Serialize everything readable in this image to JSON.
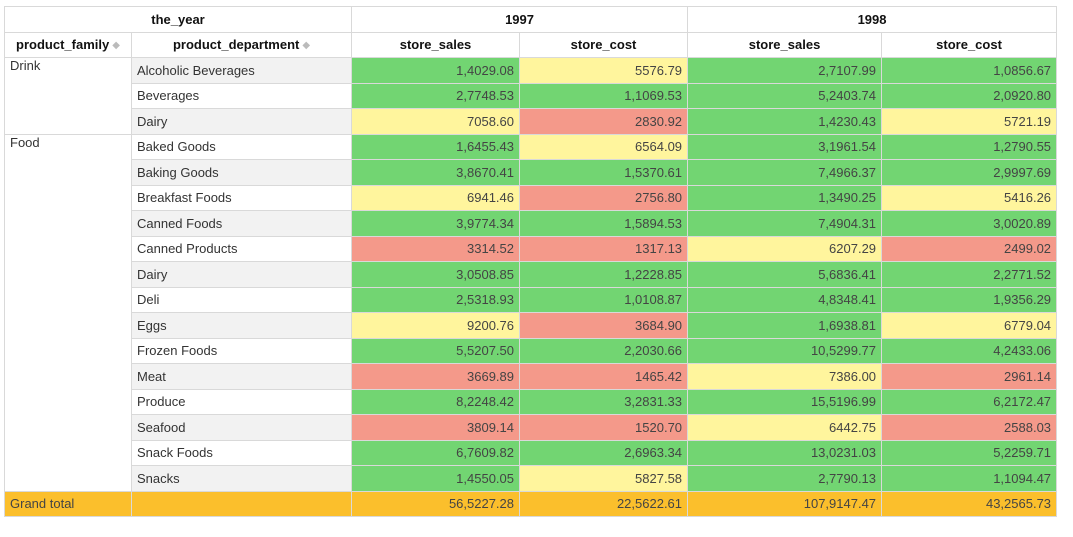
{
  "headers": {
    "year_axis": "the_year",
    "years": [
      "1997",
      "1998"
    ],
    "row_fields": [
      "product_family",
      "product_department"
    ],
    "measures": [
      "store_sales",
      "store_cost"
    ]
  },
  "families": [
    {
      "name": "Drink",
      "rows": [
        {
          "dept": "Alcoholic Beverages",
          "v": [
            "1,4029.08",
            "5576.79",
            "2,7107.99",
            "1,0856.67"
          ],
          "c": [
            "green",
            "yellow",
            "green",
            "green"
          ]
        },
        {
          "dept": "Beverages",
          "v": [
            "2,7748.53",
            "1,1069.53",
            "5,2403.74",
            "2,0920.80"
          ],
          "c": [
            "green",
            "green",
            "green",
            "green"
          ]
        },
        {
          "dept": "Dairy",
          "v": [
            "7058.60",
            "2830.92",
            "1,4230.43",
            "5721.19"
          ],
          "c": [
            "yellow",
            "red",
            "green",
            "yellow"
          ]
        }
      ]
    },
    {
      "name": "Food",
      "rows": [
        {
          "dept": "Baked Goods",
          "v": [
            "1,6455.43",
            "6564.09",
            "3,1961.54",
            "1,2790.55"
          ],
          "c": [
            "green",
            "yellow",
            "green",
            "green"
          ]
        },
        {
          "dept": "Baking Goods",
          "v": [
            "3,8670.41",
            "1,5370.61",
            "7,4966.37",
            "2,9997.69"
          ],
          "c": [
            "green",
            "green",
            "green",
            "green"
          ]
        },
        {
          "dept": "Breakfast Foods",
          "v": [
            "6941.46",
            "2756.80",
            "1,3490.25",
            "5416.26"
          ],
          "c": [
            "yellow",
            "red",
            "green",
            "yellow"
          ]
        },
        {
          "dept": "Canned Foods",
          "v": [
            "3,9774.34",
            "1,5894.53",
            "7,4904.31",
            "3,0020.89"
          ],
          "c": [
            "green",
            "green",
            "green",
            "green"
          ]
        },
        {
          "dept": "Canned Products",
          "v": [
            "3314.52",
            "1317.13",
            "6207.29",
            "2499.02"
          ],
          "c": [
            "red",
            "red",
            "yellow",
            "red"
          ]
        },
        {
          "dept": "Dairy",
          "v": [
            "3,0508.85",
            "1,2228.85",
            "5,6836.41",
            "2,2771.52"
          ],
          "c": [
            "green",
            "green",
            "green",
            "green"
          ]
        },
        {
          "dept": "Deli",
          "v": [
            "2,5318.93",
            "1,0108.87",
            "4,8348.41",
            "1,9356.29"
          ],
          "c": [
            "green",
            "green",
            "green",
            "green"
          ]
        },
        {
          "dept": "Eggs",
          "v": [
            "9200.76",
            "3684.90",
            "1,6938.81",
            "6779.04"
          ],
          "c": [
            "yellow",
            "red",
            "green",
            "yellow"
          ]
        },
        {
          "dept": "Frozen Foods",
          "v": [
            "5,5207.50",
            "2,2030.66",
            "10,5299.77",
            "4,2433.06"
          ],
          "c": [
            "green",
            "green",
            "green",
            "green"
          ]
        },
        {
          "dept": "Meat",
          "v": [
            "3669.89",
            "1465.42",
            "7386.00",
            "2961.14"
          ],
          "c": [
            "red",
            "red",
            "yellow",
            "red"
          ]
        },
        {
          "dept": "Produce",
          "v": [
            "8,2248.42",
            "3,2831.33",
            "15,5196.99",
            "6,2172.47"
          ],
          "c": [
            "green",
            "green",
            "green",
            "green"
          ]
        },
        {
          "dept": "Seafood",
          "v": [
            "3809.14",
            "1520.70",
            "6442.75",
            "2588.03"
          ],
          "c": [
            "red",
            "red",
            "yellow",
            "red"
          ]
        },
        {
          "dept": "Snack Foods",
          "v": [
            "6,7609.82",
            "2,6963.34",
            "13,0231.03",
            "5,2259.71"
          ],
          "c": [
            "green",
            "green",
            "green",
            "green"
          ]
        },
        {
          "dept": "Snacks",
          "v": [
            "1,4550.05",
            "5827.58",
            "2,7790.13",
            "1,1094.47"
          ],
          "c": [
            "green",
            "yellow",
            "green",
            "green"
          ]
        }
      ]
    }
  ],
  "grand_total": {
    "label": "Grand total",
    "v": [
      "56,5227.28",
      "22,5622.61",
      "107,9147.47",
      "43,2565.73"
    ]
  },
  "colors": {
    "green": "#72d572",
    "yellow": "#fff59d",
    "red": "#f4998a",
    "total": "#fbbf2c"
  }
}
